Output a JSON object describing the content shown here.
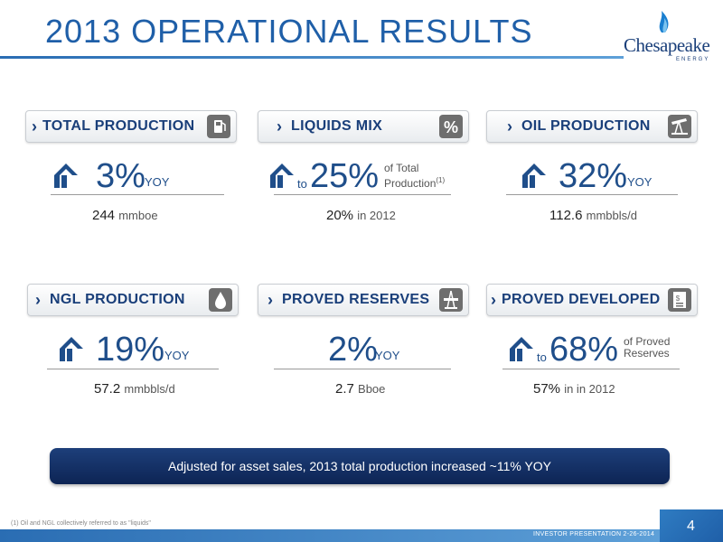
{
  "title": "2013 OPERATIONAL RESULTS",
  "logo": {
    "word": "Chesapeake",
    "sub": "ENERGY"
  },
  "panels": [
    {
      "header": "TOTAL PRODUCTION",
      "icon": "gas-pump-icon",
      "to": "",
      "value": "3%",
      "suffix": "YOY",
      "side1": "",
      "side2": "",
      "sup": "",
      "sub_value": "244",
      "sub_unit": "mmboe"
    },
    {
      "header": "LIQUIDS MIX",
      "icon": "percent-icon",
      "to": "to",
      "value": "25%",
      "suffix": "",
      "side1": "of Total",
      "side2": "Production",
      "sup": "(1)",
      "sub_value": "20%",
      "sub_unit": "in 2012"
    },
    {
      "header": "OIL PRODUCTION",
      "icon": "pumpjack-icon",
      "to": "",
      "value": "32%",
      "suffix": "YOY",
      "side1": "",
      "side2": "",
      "sup": "",
      "sub_value": "112.6",
      "sub_unit": "mmbbls/d"
    },
    {
      "header": "NGL PRODUCTION",
      "icon": "droplet-icon",
      "to": "",
      "value": "19%",
      "suffix": "YOY",
      "side1": "",
      "side2": "",
      "sup": "",
      "sub_value": "57.2",
      "sub_unit": "mmbbls/d"
    },
    {
      "header": "PROVED RESERVES",
      "icon": "oil-rig-icon",
      "to": "",
      "value": "2%",
      "suffix": "YOY",
      "side1": "",
      "side2": "",
      "sup": "",
      "sub_value": "2.7",
      "sub_unit": "Bboe"
    },
    {
      "header": "PROVED DEVELOPED",
      "icon": "money-document-icon",
      "to": "to",
      "value": "68%",
      "suffix": "",
      "side1": "of Proved",
      "side2": "Reserves",
      "sup": "",
      "sub_value": "57%",
      "sub_unit": "in in 2012"
    }
  ],
  "banner": "Adjusted for asset sales, 2013 total production increased ~11% YOY",
  "footnote": "(1) Oil and NGL collectively referred to as \"liquids\"",
  "footer_text": "INVESTOR PRESENTATION  2-26-2014",
  "page_number": "4"
}
